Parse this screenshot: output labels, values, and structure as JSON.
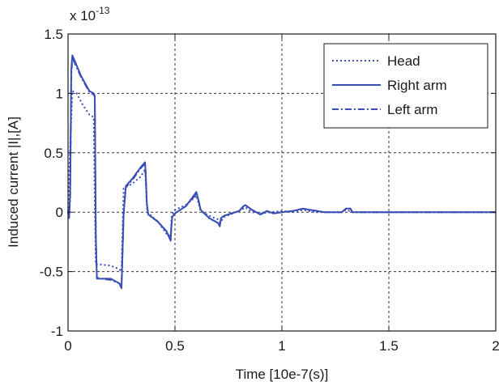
{
  "chart_data": {
    "type": "line",
    "xlabel": "Time [10e-7(s)]",
    "ylabel": "Induced current |I|,[A]",
    "exponent_label": "x 10",
    "exponent_power": "-13",
    "xlim": [
      0,
      2
    ],
    "ylim": [
      -1,
      1.5
    ],
    "xticks": [
      0,
      0.5,
      1,
      1.5,
      2
    ],
    "xtick_labels": [
      "0",
      "0.5",
      "1",
      "1.5",
      "2"
    ],
    "yticks": [
      -1,
      -0.5,
      0,
      0.5,
      1,
      1.5
    ],
    "ytick_labels": [
      "-1",
      "-0.5",
      "0",
      "0.5",
      "1",
      "1.5"
    ],
    "grid": true,
    "legend_position": "top-right",
    "color": "#3a4fb5",
    "series": [
      {
        "name": "Head",
        "style": "dotted",
        "x": [
          0,
          0.01,
          0.02,
          0.04,
          0.07,
          0.1,
          0.12,
          0.125,
          0.13,
          0.15,
          0.2,
          0.24,
          0.25,
          0.26,
          0.3,
          0.34,
          0.36,
          0.365,
          0.37,
          0.42,
          0.46,
          0.48,
          0.485,
          0.5,
          0.55,
          0.59,
          0.6,
          0.62,
          0.66,
          0.7,
          0.71,
          0.73,
          0.8,
          0.83,
          0.86,
          0.9,
          0.95,
          1.0,
          1.05,
          1.1,
          1.15,
          1.2,
          1.28,
          1.3,
          1.33,
          1.4,
          1.6,
          1.8,
          2.0
        ],
        "y": [
          0,
          0.55,
          1.02,
          1.0,
          0.9,
          0.82,
          0.8,
          0.1,
          -0.44,
          -0.44,
          -0.45,
          -0.48,
          -0.5,
          0.2,
          0.24,
          0.3,
          0.36,
          0.2,
          0.0,
          -0.08,
          -0.18,
          -0.2,
          -0.02,
          0.02,
          0.06,
          0.12,
          0.14,
          0.01,
          -0.03,
          -0.06,
          -0.09,
          -0.04,
          0.01,
          0.04,
          0.0,
          -0.01,
          0.0,
          0.01,
          0.0,
          0.02,
          0.0,
          0.0,
          0.0,
          0.02,
          0.0,
          0.0,
          0.0,
          0.0,
          0.0
        ]
      },
      {
        "name": "Right arm",
        "style": "solid",
        "x": [
          0,
          0.005,
          0.01,
          0.015,
          0.02,
          0.03,
          0.06,
          0.1,
          0.12,
          0.125,
          0.13,
          0.135,
          0.15,
          0.2,
          0.24,
          0.25,
          0.26,
          0.27,
          0.3,
          0.34,
          0.36,
          0.363,
          0.368,
          0.375,
          0.42,
          0.46,
          0.48,
          0.483,
          0.487,
          0.5,
          0.55,
          0.58,
          0.6,
          0.61,
          0.62,
          0.66,
          0.7,
          0.71,
          0.715,
          0.73,
          0.8,
          0.82,
          0.83,
          0.86,
          0.9,
          0.93,
          0.96,
          1.0,
          1.05,
          1.1,
          1.13,
          1.2,
          1.28,
          1.3,
          1.32,
          1.33,
          1.4,
          1.6,
          1.8,
          2.0
        ],
        "y": [
          0,
          -0.05,
          0.15,
          1.2,
          1.32,
          1.28,
          1.15,
          1.02,
          1.0,
          0.98,
          -0.2,
          -0.56,
          -0.56,
          -0.56,
          -0.6,
          -0.64,
          -0.02,
          0.22,
          0.28,
          0.38,
          0.42,
          0.34,
          0.08,
          -0.02,
          -0.08,
          -0.16,
          -0.24,
          -0.13,
          -0.04,
          -0.01,
          0.05,
          0.12,
          0.17,
          0.1,
          0.02,
          -0.05,
          -0.09,
          -0.12,
          -0.05,
          -0.03,
          0.01,
          0.05,
          0.06,
          0.02,
          -0.02,
          0.01,
          -0.01,
          0.0,
          0.01,
          0.03,
          0.02,
          0.0,
          0.0,
          0.03,
          0.03,
          0.0,
          0.0,
          0.0,
          0.0,
          0.0
        ]
      },
      {
        "name": "Left arm",
        "style": "dashdot",
        "x": [
          0,
          0.005,
          0.01,
          0.015,
          0.02,
          0.03,
          0.06,
          0.1,
          0.12,
          0.125,
          0.13,
          0.135,
          0.15,
          0.2,
          0.24,
          0.25,
          0.26,
          0.27,
          0.3,
          0.34,
          0.36,
          0.363,
          0.368,
          0.375,
          0.42,
          0.46,
          0.48,
          0.483,
          0.487,
          0.5,
          0.55,
          0.58,
          0.6,
          0.61,
          0.62,
          0.66,
          0.7,
          0.71,
          0.715,
          0.73,
          0.8,
          0.82,
          0.83,
          0.86,
          0.9,
          0.93,
          0.96,
          1.0,
          1.05,
          1.1,
          1.13,
          1.2,
          1.28,
          1.3,
          1.32,
          1.33,
          1.4,
          1.6,
          1.8,
          2.0
        ],
        "y": [
          0,
          -0.05,
          0.12,
          1.15,
          1.3,
          1.26,
          1.14,
          1.01,
          0.99,
          0.97,
          -0.2,
          -0.55,
          -0.56,
          -0.57,
          -0.6,
          -0.63,
          -0.02,
          0.21,
          0.27,
          0.37,
          0.41,
          0.33,
          0.07,
          -0.02,
          -0.08,
          -0.16,
          -0.23,
          -0.12,
          -0.04,
          -0.01,
          0.05,
          0.11,
          0.16,
          0.1,
          0.02,
          -0.05,
          -0.09,
          -0.11,
          -0.05,
          -0.03,
          0.01,
          0.05,
          0.06,
          0.02,
          -0.02,
          0.01,
          -0.01,
          0.0,
          0.01,
          0.03,
          0.02,
          0.0,
          0.0,
          0.03,
          0.03,
          0.0,
          0.0,
          0.0,
          0.0,
          0.0
        ]
      }
    ]
  }
}
